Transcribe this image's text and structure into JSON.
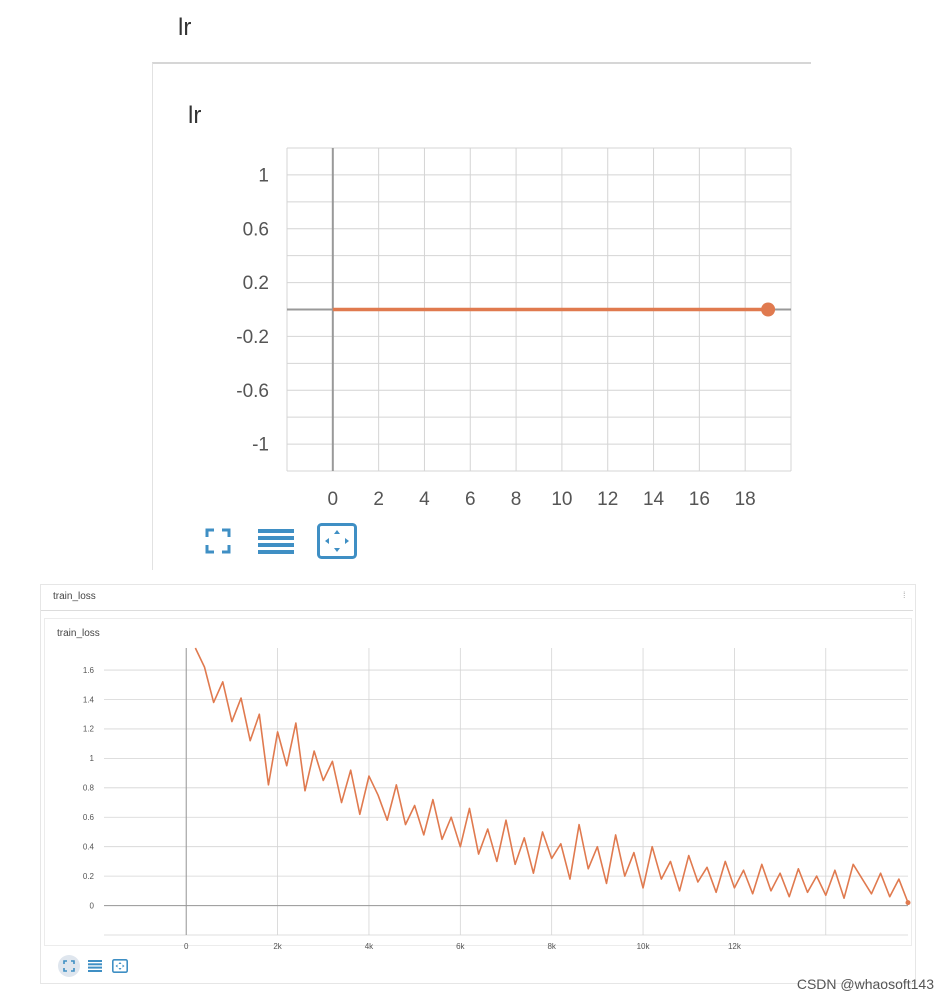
{
  "watermark": "CSDN @whaosoft143",
  "colors": {
    "line": "#e07a4f",
    "grid": "#d4d4d4",
    "axis": "#999999",
    "tick_text": "#555555",
    "icon": "#3f8fc4"
  },
  "toolbar_icons": [
    "fit-to-data-icon",
    "data-table-icon",
    "expand-chart-icon"
  ],
  "chart_data": [
    {
      "type": "line",
      "section_title": "lr",
      "title": "lr",
      "xlim": [
        -2,
        20
      ],
      "ylim": [
        -1.2,
        1.2
      ],
      "x_ticks": [
        0,
        2,
        4,
        6,
        8,
        10,
        12,
        14,
        16,
        18
      ],
      "x_tick_labels": [
        "0",
        "2",
        "4",
        "6",
        "8",
        "10",
        "12",
        "14",
        "16",
        "18"
      ],
      "y_ticks": [
        1,
        0.6,
        0.2,
        -0.2,
        -0.6,
        -1
      ],
      "y_tick_labels": [
        "1",
        "0.6",
        "0.2",
        "-0.2",
        "-0.6",
        "-1"
      ],
      "series": [
        {
          "x": [
            0,
            19
          ],
          "y": [
            0,
            0
          ],
          "color": "#e07a4f"
        }
      ],
      "grid": true
    },
    {
      "type": "line",
      "section_title": "train_loss",
      "title": "train_loss",
      "xlim": [
        -1.8,
        15.8
      ],
      "ylim": [
        -0.2,
        1.75
      ],
      "x_ticks": [
        0,
        2,
        4,
        6,
        8,
        10,
        12
      ],
      "x_tick_labels": [
        "0",
        "2k",
        "4k",
        "6k",
        "8k",
        "10k",
        "12k"
      ],
      "y_ticks": [
        1.6,
        1.4,
        1.2,
        1,
        0.8,
        0.6,
        0.4,
        0.2,
        0
      ],
      "y_tick_labels": [
        "1.6",
        "1.4",
        "1.2",
        "1",
        "0.8",
        "0.6",
        "0.4",
        "0.2",
        "0"
      ],
      "series": [
        {
          "color": "#e07a4f",
          "x": [
            0.2,
            0.4,
            0.6,
            0.8,
            1.0,
            1.2,
            1.4,
            1.6,
            1.8,
            2.0,
            2.2,
            2.4,
            2.6,
            2.8,
            3.0,
            3.2,
            3.4,
            3.6,
            3.8,
            4.0,
            4.2,
            4.4,
            4.6,
            4.8,
            5.0,
            5.2,
            5.4,
            5.6,
            5.8,
            6.0,
            6.2,
            6.4,
            6.6,
            6.8,
            7.0,
            7.2,
            7.4,
            7.6,
            7.8,
            8.0,
            8.2,
            8.4,
            8.6,
            8.8,
            9.0,
            9.2,
            9.4,
            9.6,
            9.8,
            10.0,
            10.2,
            10.4,
            10.6,
            10.8,
            11.0,
            11.2,
            11.4,
            11.6,
            11.8,
            12.0,
            12.2,
            12.4,
            12.6,
            12.8,
            13.0,
            13.2,
            13.4,
            13.6,
            13.8,
            14.0,
            14.2,
            14.4,
            14.6,
            15.0,
            15.2,
            15.4,
            15.6,
            15.8
          ],
          "y": [
            1.75,
            1.62,
            1.38,
            1.52,
            1.25,
            1.41,
            1.12,
            1.3,
            0.82,
            1.18,
            0.95,
            1.24,
            0.78,
            1.05,
            0.85,
            0.98,
            0.7,
            0.92,
            0.62,
            0.88,
            0.75,
            0.58,
            0.82,
            0.55,
            0.68,
            0.48,
            0.72,
            0.45,
            0.6,
            0.4,
            0.66,
            0.35,
            0.52,
            0.3,
            0.58,
            0.28,
            0.46,
            0.22,
            0.5,
            0.32,
            0.42,
            0.18,
            0.55,
            0.25,
            0.4,
            0.15,
            0.48,
            0.2,
            0.36,
            0.12,
            0.4,
            0.18,
            0.3,
            0.1,
            0.34,
            0.16,
            0.26,
            0.09,
            0.3,
            0.12,
            0.24,
            0.08,
            0.28,
            0.1,
            0.22,
            0.06,
            0.25,
            0.09,
            0.2,
            0.07,
            0.24,
            0.05,
            0.28,
            0.08,
            0.22,
            0.06,
            0.18,
            0.02
          ]
        }
      ],
      "grid": true
    }
  ]
}
